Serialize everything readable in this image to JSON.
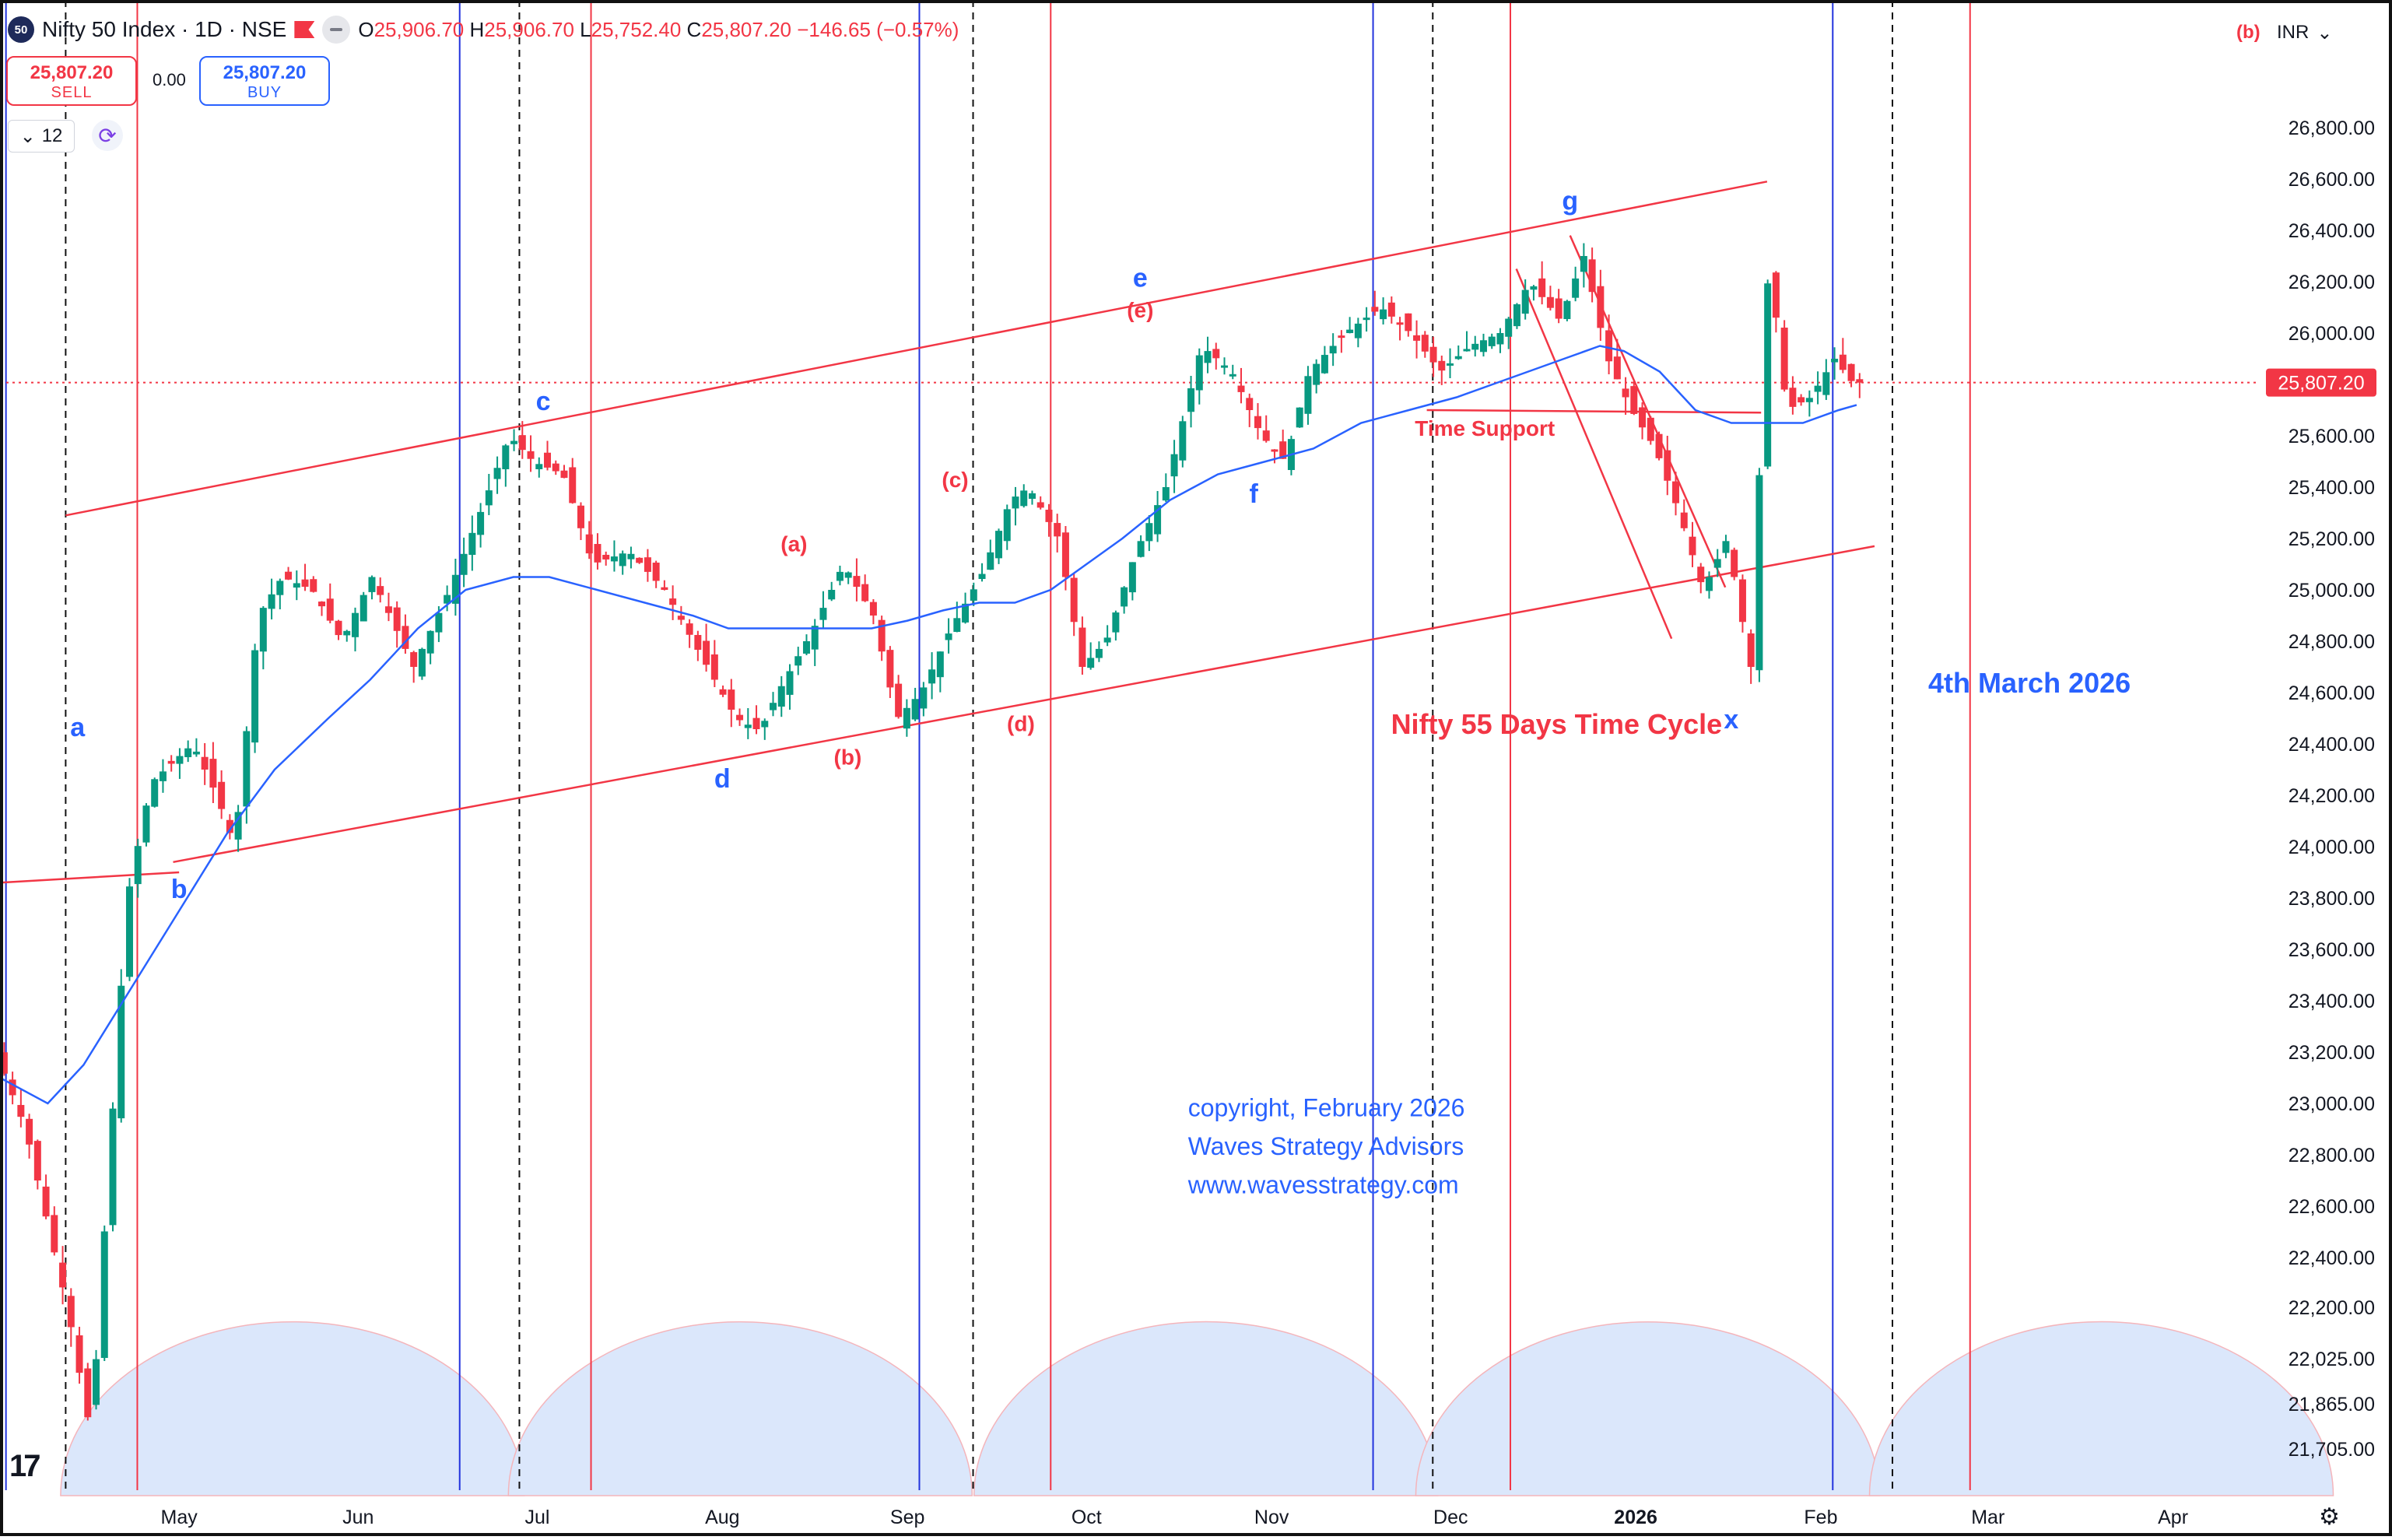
{
  "header": {
    "badge": "50",
    "symbol": "Nifty 50 Index · 1D · NSE",
    "o_label": "O",
    "o_value": "25,906.70",
    "h_label": "H",
    "h_value": "25,906.70",
    "l_label": "L",
    "l_value": "25,752.40",
    "c_label": "C",
    "c_value": "25,807.20",
    "change": "−146.65 (−0.57%)"
  },
  "trade": {
    "sell_price": "25,807.20",
    "sell_label": "SELL",
    "spread": "0.00",
    "buy_price": "25,807.20",
    "buy_label": "BUY"
  },
  "interval": {
    "value": "12",
    "chevron": "chevron-down-icon"
  },
  "currency": {
    "label": "INR",
    "corner_tag": "(b)"
  },
  "colors": {
    "up": "#089981",
    "down": "#f23645",
    "ma": "#2962ff",
    "annot_blue": "#2962ff",
    "annot_red": "#f23645",
    "cycle_fill": "#dbe7fb",
    "last_price_bg": "#f23645"
  },
  "chart_data": {
    "type": "candlestick",
    "title": "Nifty 50 Index · 1D · NSE",
    "y_axis": {
      "ticks": [
        21705,
        21865,
        22025,
        22200,
        22400,
        22600,
        22800,
        23000,
        23200,
        23400,
        23600,
        23800,
        24000,
        24200,
        24400,
        24600,
        24800,
        25000,
        25200,
        25400,
        25600,
        25800,
        26000,
        26200,
        26400,
        26600,
        26800
      ],
      "tick_labels": [
        "21,705.00",
        "21,865.00",
        "22,025.00",
        "22,200.00",
        "22,400.00",
        "22,600.00",
        "22,800.00",
        "23,000.00",
        "23,200.00",
        "23,400.00",
        "23,600.00",
        "23,800.00",
        "24,000.00",
        "24,200.00",
        "24,400.00",
        "24,600.00",
        "24,800.00",
        "25,000.00",
        "25,200.00",
        "25,400.00",
        "25,600.00",
        "25,800.00",
        "26,000.00",
        "26,200.00",
        "26,400.00",
        "26,600.00",
        "26,800.00"
      ],
      "scale": "mixed-linear",
      "last_price": "25,807.20",
      "last_value": 25807.2
    },
    "x_axis": {
      "labels": [
        "May",
        "Jun",
        "Jul",
        "Aug",
        "Sep",
        "Oct",
        "Nov",
        "Dec",
        "2026",
        "Feb",
        "Mar",
        "Apr"
      ],
      "label_days": [
        30,
        60,
        90,
        121,
        152,
        182,
        213,
        243,
        274,
        305,
        333,
        364
      ],
      "day_range": [
        0,
        378
      ]
    },
    "series": [
      {
        "kind": "price",
        "points": [
          [
            0,
            23200
          ],
          [
            5,
            22900
          ],
          [
            12,
            22200
          ],
          [
            16,
            21750
          ],
          [
            22,
            23800
          ],
          [
            26,
            24250
          ],
          [
            33,
            24400
          ],
          [
            37,
            24200
          ],
          [
            40,
            24000
          ],
          [
            44,
            24900
          ],
          [
            48,
            25050
          ],
          [
            53,
            25000
          ],
          [
            58,
            24800
          ],
          [
            63,
            25050
          ],
          [
            70,
            24700
          ],
          [
            76,
            25000
          ],
          [
            82,
            25350
          ],
          [
            86,
            25600
          ],
          [
            90,
            25500
          ],
          [
            95,
            25450
          ],
          [
            100,
            25100
          ],
          [
            106,
            25150
          ],
          [
            112,
            25000
          ],
          [
            118,
            24750
          ],
          [
            124,
            24500
          ],
          [
            128,
            24450
          ],
          [
            131,
            24600
          ],
          [
            137,
            24850
          ],
          [
            142,
            25100
          ],
          [
            147,
            24900
          ],
          [
            151,
            24500
          ],
          [
            155,
            24600
          ],
          [
            160,
            24850
          ],
          [
            165,
            25050
          ],
          [
            170,
            25350
          ],
          [
            173,
            25400
          ],
          [
            178,
            25200
          ],
          [
            182,
            24700
          ],
          [
            186,
            24800
          ],
          [
            191,
            25150
          ],
          [
            196,
            25400
          ],
          [
            202,
            25950
          ],
          [
            207,
            25850
          ],
          [
            212,
            25600
          ],
          [
            216,
            25500
          ],
          [
            220,
            25850
          ],
          [
            226,
            26000
          ],
          [
            232,
            26100
          ],
          [
            237,
            26000
          ],
          [
            242,
            25850
          ],
          [
            247,
            25950
          ],
          [
            252,
            26000
          ],
          [
            257,
            26200
          ],
          [
            262,
            26050
          ],
          [
            266,
            26300
          ],
          [
            270,
            25900
          ],
          [
            274,
            25700
          ],
          [
            278,
            25550
          ],
          [
            282,
            25300
          ],
          [
            286,
            25000
          ],
          [
            290,
            25200
          ],
          [
            294,
            24700
          ],
          [
            297,
            26300
          ],
          [
            300,
            25700
          ],
          [
            304,
            25750
          ],
          [
            308,
            25900
          ],
          [
            311,
            25807
          ]
        ]
      },
      {
        "kind": "ma",
        "points": [
          [
            0,
            23100
          ],
          [
            8,
            23000
          ],
          [
            14,
            23150
          ],
          [
            22,
            23450
          ],
          [
            30,
            23750
          ],
          [
            38,
            24050
          ],
          [
            46,
            24300
          ],
          [
            55,
            24500
          ],
          [
            62,
            24650
          ],
          [
            70,
            24850
          ],
          [
            78,
            25000
          ],
          [
            86,
            25050
          ],
          [
            92,
            25050
          ],
          [
            100,
            25000
          ],
          [
            108,
            24950
          ],
          [
            116,
            24900
          ],
          [
            122,
            24850
          ],
          [
            130,
            24850
          ],
          [
            138,
            24850
          ],
          [
            146,
            24850
          ],
          [
            152,
            24880
          ],
          [
            158,
            24920
          ],
          [
            164,
            24950
          ],
          [
            170,
            24950
          ],
          [
            176,
            25000
          ],
          [
            182,
            25100
          ],
          [
            188,
            25200
          ],
          [
            196,
            25350
          ],
          [
            204,
            25450
          ],
          [
            212,
            25500
          ],
          [
            220,
            25550
          ],
          [
            228,
            25650
          ],
          [
            236,
            25700
          ],
          [
            244,
            25750
          ],
          [
            250,
            25800
          ],
          [
            256,
            25850
          ],
          [
            262,
            25900
          ],
          [
            268,
            25950
          ],
          [
            272,
            25930
          ],
          [
            278,
            25850
          ],
          [
            284,
            25700
          ],
          [
            290,
            25650
          ],
          [
            296,
            25650
          ],
          [
            302,
            25650
          ],
          [
            308,
            25700
          ],
          [
            311,
            25720
          ]
        ]
      }
    ],
    "annotations": [
      {
        "text": "a",
        "day": 13,
        "value": 24430,
        "color": "blue"
      },
      {
        "text": "b",
        "day": 30,
        "value": 23800,
        "color": "blue"
      },
      {
        "text": "c",
        "day": 91,
        "value": 25700,
        "color": "blue"
      },
      {
        "text": "d",
        "day": 121,
        "value": 24230,
        "color": "blue"
      },
      {
        "text": "(a)",
        "day": 133,
        "value": 25150,
        "color": "red"
      },
      {
        "text": "(b)",
        "day": 142,
        "value": 24320,
        "color": "red"
      },
      {
        "text": "(c)",
        "day": 160,
        "value": 25400,
        "color": "red"
      },
      {
        "text": "(d)",
        "day": 171,
        "value": 24450,
        "color": "red"
      },
      {
        "text": "e",
        "day": 191,
        "value": 26180,
        "color": "blue"
      },
      {
        "text": "(e)",
        "day": 191,
        "value": 26060,
        "color": "red"
      },
      {
        "text": "f",
        "day": 210,
        "value": 25340,
        "color": "blue"
      },
      {
        "text": "g",
        "day": 263,
        "value": 26480,
        "color": "blue"
      },
      {
        "text": "x",
        "day": 290,
        "value": 24460,
        "color": "blue"
      },
      {
        "text": "Time Support",
        "day": 237,
        "value": 25600,
        "color": "red"
      },
      {
        "text": "Nifty 55 Days Time Cycle",
        "day": 233,
        "value": 24440,
        "color": "red"
      },
      {
        "text": "4th March 2026",
        "day": 323,
        "value": 24600,
        "color": "blue"
      },
      {
        "text": "copyright, February 2026",
        "day": 199,
        "value": 22950,
        "color": "blue"
      },
      {
        "text": "Waves Strategy Advisors",
        "day": 199,
        "value": 22800,
        "color": "blue"
      },
      {
        "text": "www.wavesstrategy.com",
        "day": 199,
        "value": 22650,
        "color": "blue"
      }
    ],
    "cycle_lines": {
      "blue_days": [
        1,
        77,
        154,
        230,
        307
      ],
      "red_days": [
        23,
        99,
        176,
        253,
        330
      ],
      "dashed_days": [
        11,
        87,
        163,
        240,
        317
      ]
    },
    "trend_lines": [
      {
        "from": [
          11,
          25290
        ],
        "to": [
          296,
          26590
        ]
      },
      {
        "from": [
          29,
          23940
        ],
        "to": [
          314,
          25170
        ]
      },
      {
        "from": [
          0,
          23860
        ],
        "to": [
          30,
          23900
        ]
      },
      {
        "from": [
          239,
          25700
        ],
        "to": [
          295,
          25690
        ]
      },
      {
        "from": [
          254,
          26250
        ],
        "to": [
          280,
          24810
        ]
      },
      {
        "from": [
          263,
          26380
        ],
        "to": [
          289,
          25010
        ]
      }
    ],
    "cycle_arcs_centers": [
      49,
      124,
      202,
      276,
      352
    ]
  }
}
